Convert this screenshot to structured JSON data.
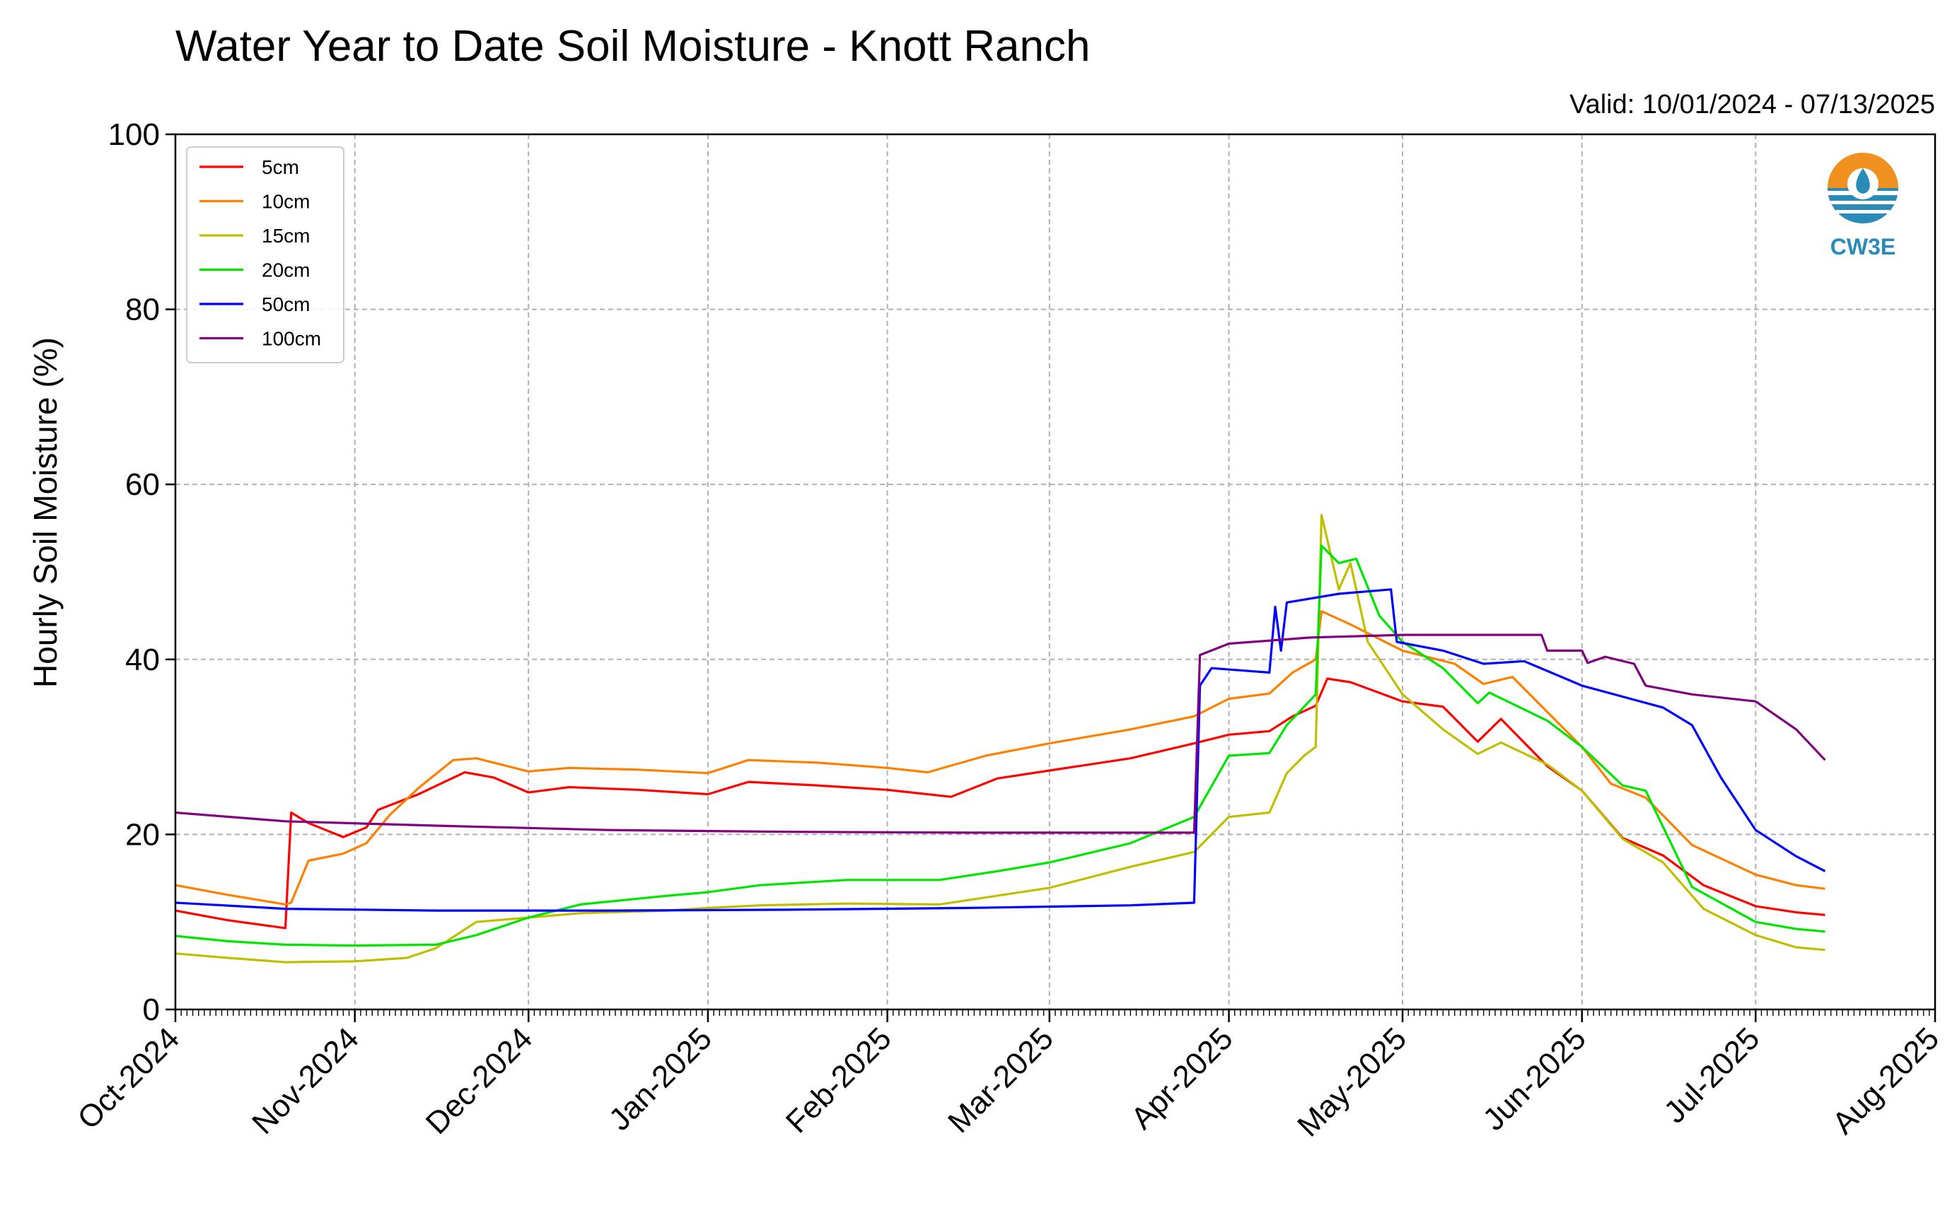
{
  "chart_data": {
    "type": "line",
    "title": "Water Year to Date Soil Moisture - Knott Ranch",
    "subtitle": "Valid: 10/01/2024 - 07/13/2025",
    "xlabel": "",
    "ylabel": "Hourly Soil Moisture (%)",
    "xlim": [
      "2024-10-01",
      "2025-08-01"
    ],
    "ylim": [
      0,
      100
    ],
    "yticks": [
      "0",
      "20",
      "40",
      "60",
      "80",
      "100"
    ],
    "xticks": [
      "Oct-2024",
      "Nov-2024",
      "Dec-2024",
      "Jan-2025",
      "Feb-2025",
      "Mar-2025",
      "Apr-2025",
      "May-2025",
      "Jun-2025",
      "Jul-2025",
      "Aug-2025"
    ],
    "grid": true,
    "legend_position": "top-left",
    "logo_text": "CW3E",
    "series": [
      {
        "name": "5cm",
        "color": "#ff0000",
        "points": [
          [
            "2024-10-01",
            11.3
          ],
          [
            "2024-10-10",
            10.2
          ],
          [
            "2024-10-20",
            9.3
          ],
          [
            "2024-10-21",
            22.5
          ],
          [
            "2024-10-24",
            21.3
          ],
          [
            "2024-10-30",
            19.7
          ],
          [
            "2024-11-03",
            20.8
          ],
          [
            "2024-11-05",
            22.8
          ],
          [
            "2024-11-12",
            24.6
          ],
          [
            "2024-11-20",
            27.1
          ],
          [
            "2024-11-25",
            26.5
          ],
          [
            "2024-12-01",
            24.8
          ],
          [
            "2024-12-08",
            25.4
          ],
          [
            "2024-12-20",
            25.1
          ],
          [
            "2025-01-01",
            24.6
          ],
          [
            "2025-01-08",
            26.0
          ],
          [
            "2025-01-20",
            25.6
          ],
          [
            "2025-02-01",
            25.1
          ],
          [
            "2025-02-12",
            24.3
          ],
          [
            "2025-02-20",
            26.4
          ],
          [
            "2025-03-01",
            27.3
          ],
          [
            "2025-03-15",
            28.7
          ],
          [
            "2025-03-26",
            30.4
          ],
          [
            "2025-04-01",
            31.4
          ],
          [
            "2025-04-08",
            31.8
          ],
          [
            "2025-04-12",
            33.5
          ],
          [
            "2025-04-16",
            34.7
          ],
          [
            "2025-04-18",
            37.8
          ],
          [
            "2025-04-22",
            37.4
          ],
          [
            "2025-05-01",
            35.2
          ],
          [
            "2025-05-08",
            34.6
          ],
          [
            "2025-05-14",
            30.6
          ],
          [
            "2025-05-18",
            33.2
          ],
          [
            "2025-05-26",
            27.8
          ],
          [
            "2025-06-01",
            25.0
          ],
          [
            "2025-06-08",
            19.6
          ],
          [
            "2025-06-15",
            17.6
          ],
          [
            "2025-06-22",
            14.2
          ],
          [
            "2025-07-01",
            11.8
          ],
          [
            "2025-07-08",
            11.1
          ],
          [
            "2025-07-13",
            10.8
          ]
        ]
      },
      {
        "name": "10cm",
        "color": "#ff8000",
        "points": [
          [
            "2024-10-01",
            14.2
          ],
          [
            "2024-10-10",
            13.1
          ],
          [
            "2024-10-20",
            12.0
          ],
          [
            "2024-10-21",
            12.2
          ],
          [
            "2024-10-24",
            17.0
          ],
          [
            "2024-10-30",
            17.8
          ],
          [
            "2024-11-03",
            19.0
          ],
          [
            "2024-11-07",
            22.2
          ],
          [
            "2024-11-12",
            25.3
          ],
          [
            "2024-11-18",
            28.5
          ],
          [
            "2024-11-22",
            28.7
          ],
          [
            "2024-12-01",
            27.2
          ],
          [
            "2024-12-08",
            27.6
          ],
          [
            "2024-12-20",
            27.4
          ],
          [
            "2025-01-01",
            27.0
          ],
          [
            "2025-01-08",
            28.5
          ],
          [
            "2025-01-20",
            28.2
          ],
          [
            "2025-02-01",
            27.6
          ],
          [
            "2025-02-08",
            27.1
          ],
          [
            "2025-02-18",
            29.0
          ],
          [
            "2025-03-01",
            30.4
          ],
          [
            "2025-03-15",
            32.0
          ],
          [
            "2025-03-26",
            33.5
          ],
          [
            "2025-04-01",
            35.5
          ],
          [
            "2025-04-08",
            36.1
          ],
          [
            "2025-04-12",
            38.5
          ],
          [
            "2025-04-16",
            40.0
          ],
          [
            "2025-04-17",
            45.5
          ],
          [
            "2025-04-22",
            44.0
          ],
          [
            "2025-05-01",
            41.0
          ],
          [
            "2025-05-10",
            39.5
          ],
          [
            "2025-05-15",
            37.2
          ],
          [
            "2025-05-20",
            38.0
          ],
          [
            "2025-05-26",
            34.0
          ],
          [
            "2025-06-01",
            30.0
          ],
          [
            "2025-06-06",
            25.8
          ],
          [
            "2025-06-12",
            24.2
          ],
          [
            "2025-06-20",
            18.8
          ],
          [
            "2025-07-01",
            15.4
          ],
          [
            "2025-07-08",
            14.2
          ],
          [
            "2025-07-13",
            13.8
          ]
        ]
      },
      {
        "name": "15cm",
        "color": "#bfbf00",
        "points": [
          [
            "2024-10-01",
            6.4
          ],
          [
            "2024-10-10",
            5.9
          ],
          [
            "2024-10-20",
            5.4
          ],
          [
            "2024-11-01",
            5.5
          ],
          [
            "2024-11-10",
            5.9
          ],
          [
            "2024-11-15",
            7.0
          ],
          [
            "2024-11-22",
            10.0
          ],
          [
            "2024-12-01",
            10.5
          ],
          [
            "2024-12-10",
            11.0
          ],
          [
            "2024-12-25",
            11.3
          ],
          [
            "2025-01-01",
            11.6
          ],
          [
            "2025-01-10",
            11.9
          ],
          [
            "2025-01-25",
            12.1
          ],
          [
            "2025-02-10",
            12.0
          ],
          [
            "2025-02-20",
            13.0
          ],
          [
            "2025-03-01",
            13.9
          ],
          [
            "2025-03-15",
            16.3
          ],
          [
            "2025-03-26",
            18.0
          ],
          [
            "2025-04-01",
            22.0
          ],
          [
            "2025-04-08",
            22.5
          ],
          [
            "2025-04-11",
            27.0
          ],
          [
            "2025-04-14",
            29.0
          ],
          [
            "2025-04-16",
            30.0
          ],
          [
            "2025-04-17",
            56.5
          ],
          [
            "2025-04-20",
            48.0
          ],
          [
            "2025-04-22",
            51.0
          ],
          [
            "2025-04-25",
            42.0
          ],
          [
            "2025-05-01",
            36.0
          ],
          [
            "2025-05-08",
            32.0
          ],
          [
            "2025-05-14",
            29.2
          ],
          [
            "2025-05-18",
            30.5
          ],
          [
            "2025-05-26",
            28.0
          ],
          [
            "2025-06-01",
            25.0
          ],
          [
            "2025-06-08",
            19.5
          ],
          [
            "2025-06-15",
            16.8
          ],
          [
            "2025-06-22",
            11.5
          ],
          [
            "2025-07-01",
            8.5
          ],
          [
            "2025-07-08",
            7.1
          ],
          [
            "2025-07-13",
            6.8
          ]
        ]
      },
      {
        "name": "20cm",
        "color": "#00e600",
        "points": [
          [
            "2024-10-01",
            8.4
          ],
          [
            "2024-10-10",
            7.8
          ],
          [
            "2024-10-20",
            7.4
          ],
          [
            "2024-11-01",
            7.3
          ],
          [
            "2024-11-15",
            7.4
          ],
          [
            "2024-11-22",
            8.5
          ],
          [
            "2024-12-01",
            10.5
          ],
          [
            "2024-12-10",
            12.0
          ],
          [
            "2024-12-25",
            13.0
          ],
          [
            "2025-01-01",
            13.4
          ],
          [
            "2025-01-10",
            14.2
          ],
          [
            "2025-01-25",
            14.8
          ],
          [
            "2025-02-10",
            14.8
          ],
          [
            "2025-02-20",
            15.8
          ],
          [
            "2025-03-01",
            16.8
          ],
          [
            "2025-03-15",
            19.0
          ],
          [
            "2025-03-26",
            22.0
          ],
          [
            "2025-04-01",
            29.0
          ],
          [
            "2025-04-08",
            29.3
          ],
          [
            "2025-04-11",
            32.5
          ],
          [
            "2025-04-16",
            36.0
          ],
          [
            "2025-04-17",
            53.0
          ],
          [
            "2025-04-20",
            51.0
          ],
          [
            "2025-04-23",
            51.5
          ],
          [
            "2025-04-27",
            45.0
          ],
          [
            "2025-05-01",
            42.0
          ],
          [
            "2025-05-08",
            39.0
          ],
          [
            "2025-05-14",
            35.0
          ],
          [
            "2025-05-16",
            36.2
          ],
          [
            "2025-05-26",
            33.0
          ],
          [
            "2025-06-01",
            30.0
          ],
          [
            "2025-06-08",
            25.6
          ],
          [
            "2025-06-12",
            25.0
          ],
          [
            "2025-06-20",
            14.0
          ],
          [
            "2025-07-01",
            10.0
          ],
          [
            "2025-07-08",
            9.2
          ],
          [
            "2025-07-13",
            8.9
          ]
        ]
      },
      {
        "name": "50cm",
        "color": "#0000ff",
        "points": [
          [
            "2024-10-01",
            12.2
          ],
          [
            "2024-10-20",
            11.5
          ],
          [
            "2024-11-15",
            11.3
          ],
          [
            "2024-12-15",
            11.3
          ],
          [
            "2025-01-15",
            11.4
          ],
          [
            "2025-02-15",
            11.6
          ],
          [
            "2025-03-15",
            11.9
          ],
          [
            "2025-03-26",
            12.2
          ],
          [
            "2025-03-27",
            37.0
          ],
          [
            "2025-03-29",
            39.0
          ],
          [
            "2025-04-08",
            38.5
          ],
          [
            "2025-04-09",
            46.0
          ],
          [
            "2025-04-10",
            41.0
          ],
          [
            "2025-04-11",
            46.5
          ],
          [
            "2025-04-20",
            47.5
          ],
          [
            "2025-04-29",
            48.0
          ],
          [
            "2025-04-30",
            42.0
          ],
          [
            "2025-05-08",
            41.0
          ],
          [
            "2025-05-15",
            39.5
          ],
          [
            "2025-05-22",
            39.8
          ],
          [
            "2025-06-01",
            37.0
          ],
          [
            "2025-06-15",
            34.5
          ],
          [
            "2025-06-20",
            32.5
          ],
          [
            "2025-06-25",
            26.5
          ],
          [
            "2025-07-01",
            20.5
          ],
          [
            "2025-07-08",
            17.5
          ],
          [
            "2025-07-13",
            15.8
          ]
        ]
      },
      {
        "name": "100cm",
        "color": "#800080",
        "points": [
          [
            "2024-10-01",
            22.5
          ],
          [
            "2024-10-20",
            21.5
          ],
          [
            "2024-11-15",
            21.0
          ],
          [
            "2024-12-15",
            20.5
          ],
          [
            "2025-01-15",
            20.3
          ],
          [
            "2025-02-15",
            20.2
          ],
          [
            "2025-03-26",
            20.2
          ],
          [
            "2025-03-27",
            40.5
          ],
          [
            "2025-04-01",
            41.8
          ],
          [
            "2025-04-15",
            42.5
          ],
          [
            "2025-05-01",
            42.8
          ],
          [
            "2025-05-25",
            42.8
          ],
          [
            "2025-05-26",
            41.0
          ],
          [
            "2025-06-01",
            41.0
          ],
          [
            "2025-06-02",
            39.6
          ],
          [
            "2025-06-05",
            40.3
          ],
          [
            "2025-06-10",
            39.5
          ],
          [
            "2025-06-12",
            37.0
          ],
          [
            "2025-06-20",
            36.0
          ],
          [
            "2025-07-01",
            35.2
          ],
          [
            "2025-07-08",
            32.0
          ],
          [
            "2025-07-13",
            28.5
          ]
        ]
      }
    ]
  }
}
